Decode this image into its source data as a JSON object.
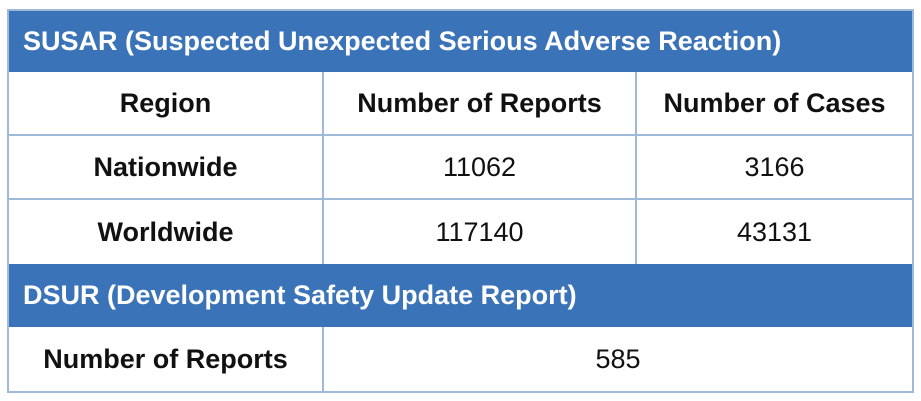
{
  "susar": {
    "title": "SUSAR (Suspected Unexpected Serious Adverse Reaction)",
    "columns": [
      "Region",
      "Number of Reports",
      "Number of Cases"
    ],
    "rows": [
      {
        "region": "Nationwide",
        "reports": "11062",
        "cases": "3166"
      },
      {
        "region": "Worldwide",
        "reports": "117140",
        "cases": "43131"
      }
    ]
  },
  "dsur": {
    "title": "DSUR (Development Safety Update Report)",
    "row_label": "Number of Reports",
    "value": "585"
  },
  "colors": {
    "header_band": "#3b73b9",
    "header_text": "#ffffff",
    "grid_border": "#9fbad8",
    "body_text": "#111111"
  }
}
